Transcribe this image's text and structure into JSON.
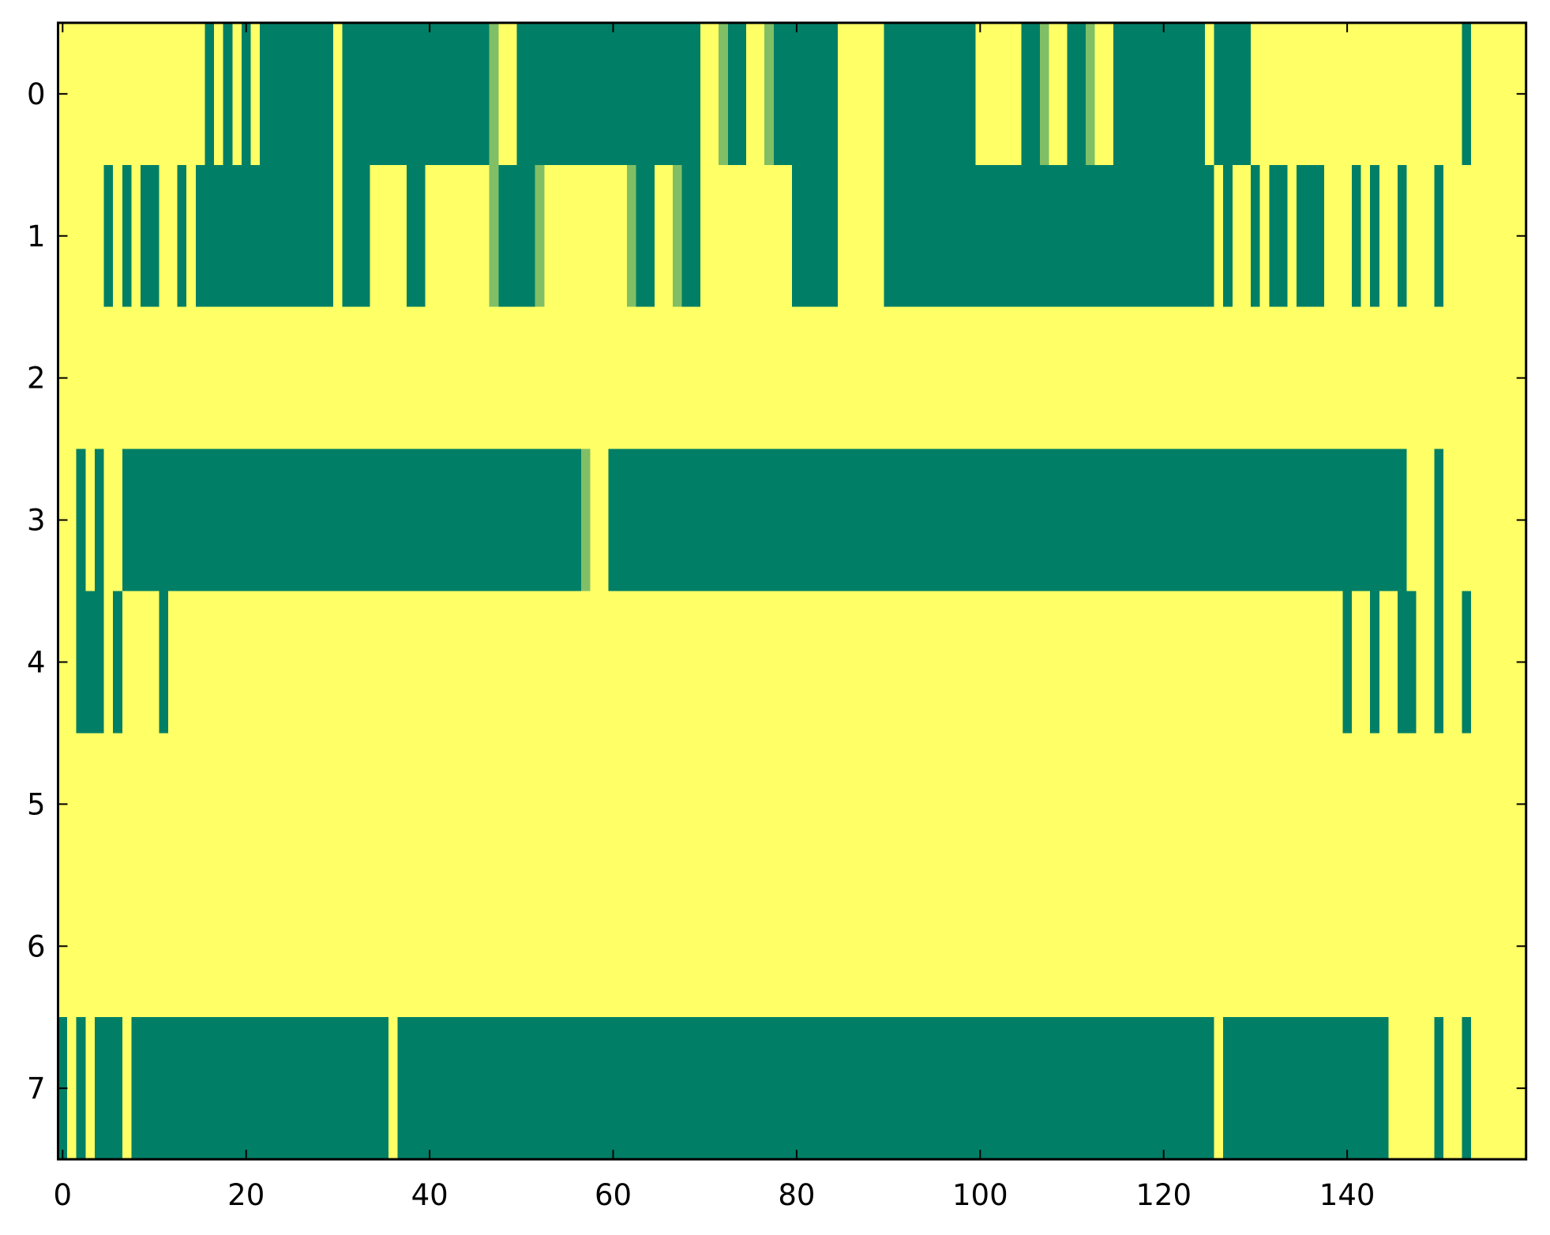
{
  "chart_data": {
    "type": "heatmap",
    "title": "",
    "xlabel": "",
    "ylabel": "",
    "colormap": "summer",
    "vmin": 0,
    "vmax": 1,
    "colors": {
      "low": "#007f66",
      "mid": "#80bf66",
      "high": "#ffff66"
    },
    "xlim": [
      -0.5,
      159.5
    ],
    "ylim": [
      7.5,
      -0.5
    ],
    "x_ticks": [
      0,
      20,
      40,
      60,
      80,
      100,
      120,
      140
    ],
    "x_tick_labels": [
      "0",
      "20",
      "40",
      "60",
      "80",
      "100",
      "120",
      "140"
    ],
    "y_ticks": [
      0,
      1,
      2,
      3,
      4,
      5,
      6,
      7
    ],
    "y_tick_labels": [
      "0",
      "1",
      "2",
      "3",
      "4",
      "5",
      "6",
      "7"
    ],
    "grid": false,
    "matrix": [
      [
        1,
        1,
        1,
        1,
        1,
        1,
        1,
        1,
        1,
        1,
        1,
        1,
        1,
        1,
        1,
        1,
        0,
        1,
        0,
        1,
        0,
        1,
        0,
        0,
        0,
        0,
        0,
        0,
        0,
        0,
        1,
        0,
        0,
        0,
        0,
        0,
        0,
        0,
        0,
        0,
        0,
        0,
        0,
        0,
        0,
        0,
        0,
        0.5,
        1,
        1,
        0,
        0,
        0,
        0,
        0,
        0,
        0,
        0,
        0,
        0,
        0,
        0,
        0,
        0,
        0,
        0,
        0,
        0,
        0,
        0,
        1,
        1,
        0.5,
        0,
        0,
        1,
        1,
        0.5,
        0,
        0,
        0,
        0,
        0,
        0,
        0,
        1,
        1,
        1,
        1,
        1,
        0,
        0,
        0,
        0,
        0,
        0,
        0,
        0,
        0,
        0,
        1,
        1,
        1,
        1,
        1,
        0,
        0,
        0.5,
        1,
        1,
        0,
        0,
        0.5,
        1,
        1,
        0,
        0,
        0,
        0,
        0,
        0,
        0,
        0,
        0,
        0,
        1,
        0,
        0,
        0,
        0,
        1,
        1,
        1,
        1,
        1,
        1,
        1,
        1,
        1,
        1,
        1,
        1,
        1,
        1,
        1,
        1,
        1,
        1,
        1,
        1,
        1,
        1,
        1,
        0,
        1,
        1,
        1,
        1,
        1,
        1
      ],
      [
        1,
        1,
        1,
        1,
        1,
        0,
        1,
        0,
        1,
        0,
        0,
        1,
        1,
        0,
        1,
        0,
        0,
        0,
        0,
        0,
        0,
        0,
        0,
        0,
        0,
        0,
        0,
        0,
        0,
        0,
        1,
        0,
        0,
        0,
        1,
        1,
        1,
        1,
        0,
        0,
        1,
        1,
        1,
        1,
        1,
        1,
        1,
        0.5,
        0,
        0,
        0,
        0,
        0.5,
        1,
        1,
        1,
        1,
        1,
        1,
        1,
        1,
        1,
        0.5,
        0,
        0,
        1,
        1,
        0.5,
        0,
        0,
        1,
        1,
        1,
        1,
        1,
        1,
        1,
        1,
        1,
        1,
        0,
        0,
        0,
        0,
        0,
        1,
        1,
        1,
        1,
        1,
        0,
        0,
        0,
        0,
        0,
        0,
        0,
        0,
        0,
        0,
        0,
        0,
        0,
        0,
        0,
        0,
        0,
        0,
        0,
        0,
        0,
        0,
        0,
        0,
        0,
        0,
        0,
        0,
        0,
        0,
        0,
        0,
        0,
        0,
        0,
        0,
        1,
        0,
        1,
        1,
        0,
        1,
        0,
        0,
        1,
        0,
        0,
        0,
        1,
        1,
        1,
        0,
        1,
        0,
        1,
        1,
        0,
        1,
        1,
        1,
        0,
        1,
        1,
        1,
        1,
        1,
        1,
        1,
        1,
        1
      ],
      [
        1,
        1,
        1,
        1,
        1,
        1,
        1,
        1,
        1,
        1,
        1,
        1,
        1,
        1,
        1,
        1,
        1,
        1,
        1,
        1,
        1,
        1,
        1,
        1,
        1,
        1,
        1,
        1,
        1,
        1,
        1,
        1,
        1,
        1,
        1,
        1,
        1,
        1,
        1,
        1,
        1,
        1,
        1,
        1,
        1,
        1,
        1,
        1,
        1,
        1,
        1,
        1,
        1,
        1,
        1,
        1,
        1,
        1,
        1,
        1,
        1,
        1,
        1,
        1,
        1,
        1,
        1,
        1,
        1,
        1,
        1,
        1,
        1,
        1,
        1,
        1,
        1,
        1,
        1,
        1,
        1,
        1,
        1,
        1,
        1,
        1,
        1,
        1,
        1,
        1,
        1,
        1,
        1,
        1,
        1,
        1,
        1,
        1,
        1,
        1,
        1,
        1,
        1,
        1,
        1,
        1,
        1,
        1,
        1,
        1,
        1,
        1,
        1,
        1,
        1,
        1,
        1,
        1,
        1,
        1,
        1,
        1,
        1,
        1,
        1,
        1,
        1,
        1,
        1,
        1,
        1,
        1,
        1,
        1,
        1,
        1,
        1,
        1,
        1,
        1,
        1,
        1,
        1,
        1,
        1,
        1,
        1,
        1,
        1,
        1,
        1,
        1,
        1,
        1,
        1,
        1,
        1,
        1,
        1,
        1
      ],
      [
        1,
        1,
        0,
        1,
        0,
        1,
        1,
        0,
        0,
        0,
        0,
        0,
        0,
        0,
        0,
        0,
        0,
        0,
        0,
        0,
        0,
        0,
        0,
        0,
        0,
        0,
        0,
        0,
        0,
        0,
        0,
        0,
        0,
        0,
        0,
        0,
        0,
        0,
        0,
        0,
        0,
        0,
        0,
        0,
        0,
        0,
        0,
        0,
        0,
        0,
        0,
        0,
        0,
        0,
        0,
        0,
        0,
        0.5,
        1,
        1,
        0,
        0,
        0,
        0,
        0,
        0,
        0,
        0,
        0,
        0,
        0,
        0,
        0,
        0,
        0,
        0,
        0,
        0,
        0,
        0,
        0,
        0,
        0,
        0,
        0,
        0,
        0,
        0,
        0,
        0,
        0,
        0,
        0,
        0,
        0,
        0,
        0,
        0,
        0,
        0,
        0,
        0,
        0,
        0,
        0,
        0,
        0,
        0,
        0,
        0,
        0,
        0,
        0,
        0,
        0,
        0,
        0,
        0,
        0,
        0,
        0,
        0,
        0,
        0,
        0,
        0,
        0,
        0,
        0,
        0,
        0,
        0,
        0,
        0,
        0,
        0,
        0,
        0,
        0,
        0,
        0,
        0,
        0,
        0,
        0,
        0,
        0,
        1,
        1,
        1,
        0,
        1,
        1,
        1,
        1,
        1,
        1,
        1,
        1,
        1
      ],
      [
        1,
        1,
        0,
        0,
        0,
        1,
        0,
        1,
        1,
        1,
        1,
        0,
        1,
        1,
        1,
        1,
        1,
        1,
        1,
        1,
        1,
        1,
        1,
        1,
        1,
        1,
        1,
        1,
        1,
        1,
        1,
        1,
        1,
        1,
        1,
        1,
        1,
        1,
        1,
        1,
        1,
        1,
        1,
        1,
        1,
        1,
        1,
        1,
        1,
        1,
        1,
        1,
        1,
        1,
        1,
        1,
        1,
        1,
        1,
        1,
        1,
        1,
        1,
        1,
        1,
        1,
        1,
        1,
        1,
        1,
        1,
        1,
        1,
        1,
        1,
        1,
        1,
        1,
        1,
        1,
        1,
        1,
        1,
        1,
        1,
        1,
        1,
        1,
        1,
        1,
        1,
        1,
        1,
        1,
        1,
        1,
        1,
        1,
        1,
        1,
        1,
        1,
        1,
        1,
        1,
        1,
        1,
        1,
        1,
        1,
        1,
        1,
        1,
        1,
        1,
        1,
        1,
        1,
        1,
        1,
        1,
        1,
        1,
        1,
        1,
        1,
        1,
        1,
        1,
        1,
        1,
        1,
        1,
        1,
        1,
        1,
        1,
        1,
        1,
        1,
        0,
        1,
        1,
        0,
        1,
        1,
        0,
        0,
        1,
        1,
        0,
        1,
        1,
        0,
        1,
        1,
        1,
        1,
        1,
        1
      ],
      [
        1,
        1,
        1,
        1,
        1,
        1,
        1,
        1,
        1,
        1,
        1,
        1,
        1,
        1,
        1,
        1,
        1,
        1,
        1,
        1,
        1,
        1,
        1,
        1,
        1,
        1,
        1,
        1,
        1,
        1,
        1,
        1,
        1,
        1,
        1,
        1,
        1,
        1,
        1,
        1,
        1,
        1,
        1,
        1,
        1,
        1,
        1,
        1,
        1,
        1,
        1,
        1,
        1,
        1,
        1,
        1,
        1,
        1,
        1,
        1,
        1,
        1,
        1,
        1,
        1,
        1,
        1,
        1,
        1,
        1,
        1,
        1,
        1,
        1,
        1,
        1,
        1,
        1,
        1,
        1,
        1,
        1,
        1,
        1,
        1,
        1,
        1,
        1,
        1,
        1,
        1,
        1,
        1,
        1,
        1,
        1,
        1,
        1,
        1,
        1,
        1,
        1,
        1,
        1,
        1,
        1,
        1,
        1,
        1,
        1,
        1,
        1,
        1,
        1,
        1,
        1,
        1,
        1,
        1,
        1,
        1,
        1,
        1,
        1,
        1,
        1,
        1,
        1,
        1,
        1,
        1,
        1,
        1,
        1,
        1,
        1,
        1,
        1,
        1,
        1,
        1,
        1,
        1,
        1,
        1,
        1,
        1,
        1,
        1,
        1,
        1,
        1,
        1,
        1,
        1,
        1,
        1,
        1,
        1,
        1
      ],
      [
        1,
        1,
        1,
        1,
        1,
        1,
        1,
        1,
        1,
        1,
        1,
        1,
        1,
        1,
        1,
        1,
        1,
        1,
        1,
        1,
        1,
        1,
        1,
        1,
        1,
        1,
        1,
        1,
        1,
        1,
        1,
        1,
        1,
        1,
        1,
        1,
        1,
        1,
        1,
        1,
        1,
        1,
        1,
        1,
        1,
        1,
        1,
        1,
        1,
        1,
        1,
        1,
        1,
        1,
        1,
        1,
        1,
        1,
        1,
        1,
        1,
        1,
        1,
        1,
        1,
        1,
        1,
        1,
        1,
        1,
        1,
        1,
        1,
        1,
        1,
        1,
        1,
        1,
        1,
        1,
        1,
        1,
        1,
        1,
        1,
        1,
        1,
        1,
        1,
        1,
        1,
        1,
        1,
        1,
        1,
        1,
        1,
        1,
        1,
        1,
        1,
        1,
        1,
        1,
        1,
        1,
        1,
        1,
        1,
        1,
        1,
        1,
        1,
        1,
        1,
        1,
        1,
        1,
        1,
        1,
        1,
        1,
        1,
        1,
        1,
        1,
        1,
        1,
        1,
        1,
        1,
        1,
        1,
        1,
        1,
        1,
        1,
        1,
        1,
        1,
        1,
        1,
        1,
        1,
        1,
        1,
        1,
        1,
        1,
        1,
        1,
        1,
        1,
        1,
        1,
        1,
        1,
        1,
        1,
        1
      ],
      [
        0,
        1,
        0,
        1,
        0,
        0,
        0,
        1,
        0,
        0,
        0,
        0,
        0,
        0,
        0,
        0,
        0,
        0,
        0,
        0,
        0,
        0,
        0,
        0,
        0,
        0,
        0,
        0,
        0,
        0,
        0,
        0,
        0,
        0,
        0,
        0,
        1,
        0,
        0,
        0,
        0,
        0,
        0,
        0,
        0,
        0,
        0,
        0,
        0,
        0,
        0,
        0,
        0,
        0,
        0,
        0,
        0,
        0,
        0,
        0,
        0,
        0,
        0,
        0,
        0,
        0,
        0,
        0,
        0,
        0,
        0,
        0,
        0,
        0,
        0,
        0,
        0,
        0,
        0,
        0,
        0,
        0,
        0,
        0,
        0,
        0,
        0,
        0,
        0,
        0,
        0,
        0,
        0,
        0,
        0,
        0,
        0,
        0,
        0,
        0,
        0,
        0,
        0,
        0,
        0,
        0,
        0,
        0,
        0,
        0,
        0,
        0,
        0,
        0,
        0,
        0,
        0,
        0,
        0,
        0,
        0,
        0,
        0,
        0,
        0,
        0,
        1,
        0,
        0,
        0,
        0,
        0,
        0,
        0,
        0,
        0,
        0,
        0,
        0,
        0,
        0,
        0,
        0,
        0,
        0,
        1,
        1,
        1,
        1,
        1,
        0,
        1,
        1,
        0,
        1,
        1,
        1,
        1,
        1,
        1
      ]
    ]
  }
}
